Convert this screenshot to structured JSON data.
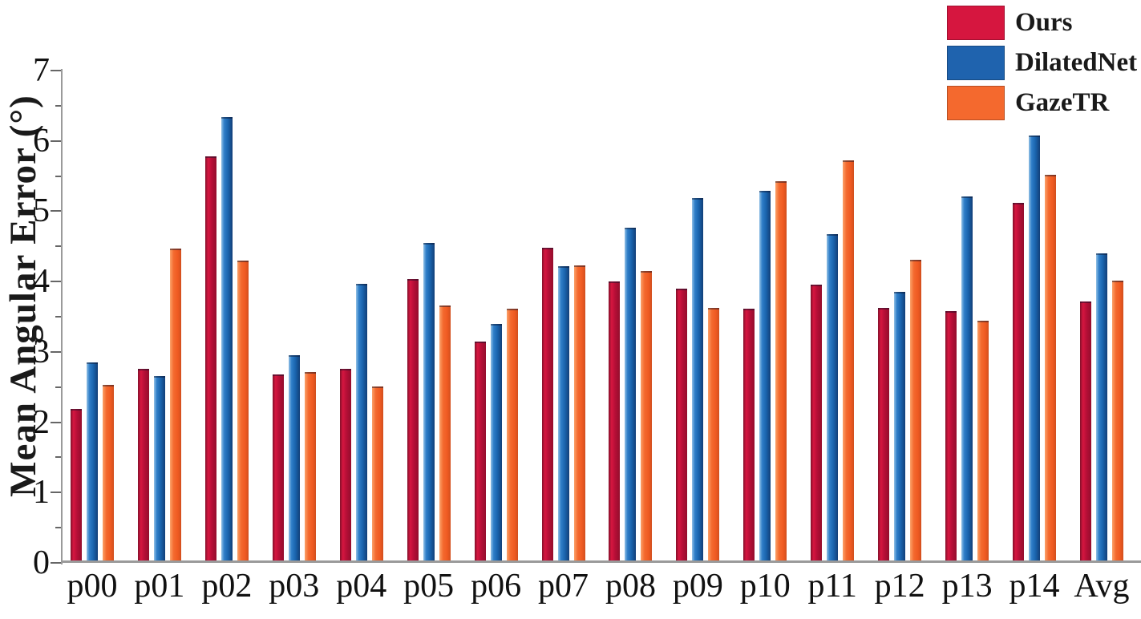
{
  "figure": {
    "background": "#ffffff",
    "axis_color": "#9a9a9a",
    "text_color": "#111111"
  },
  "colors": {
    "ours": "#d6163f",
    "dilatednet": "#1f63ae",
    "gazetr": "#f4692e"
  },
  "chart_data": {
    "type": "bar",
    "title": "",
    "xlabel": "",
    "ylabel": "Mean Angular Error (°)",
    "ylim": [
      0,
      7
    ],
    "yticks": [
      0,
      1,
      2,
      3,
      4,
      5,
      6,
      7
    ],
    "minor_tick_step": 0.5,
    "grid": false,
    "legend_position": "top-right",
    "categories": [
      "p00",
      "p01",
      "p02",
      "p03",
      "p04",
      "p05",
      "p06",
      "p07",
      "p08",
      "p09",
      "p10",
      "p11",
      "p12",
      "p13",
      "p14",
      "Avg"
    ],
    "series": [
      {
        "name": "Ours",
        "color": "#d6163f",
        "values": [
          2.15,
          2.72,
          5.75,
          2.65,
          2.72,
          4.0,
          3.11,
          4.45,
          3.97,
          3.87,
          3.58,
          3.92,
          3.59,
          3.55,
          5.09,
          3.68
        ]
      },
      {
        "name": "DilatedNet",
        "color": "#1f63ae",
        "values": [
          2.82,
          2.62,
          6.3,
          2.92,
          3.93,
          4.52,
          3.36,
          4.18,
          4.73,
          5.15,
          5.26,
          4.64,
          3.82,
          5.18,
          6.04,
          4.37
        ]
      },
      {
        "name": "GazeTR",
        "color": "#f4692e",
        "values": [
          2.5,
          4.44,
          4.27,
          2.68,
          2.48,
          3.63,
          3.58,
          4.2,
          4.12,
          3.59,
          5.39,
          5.69,
          4.28,
          3.41,
          5.48,
          3.98
        ]
      }
    ]
  }
}
